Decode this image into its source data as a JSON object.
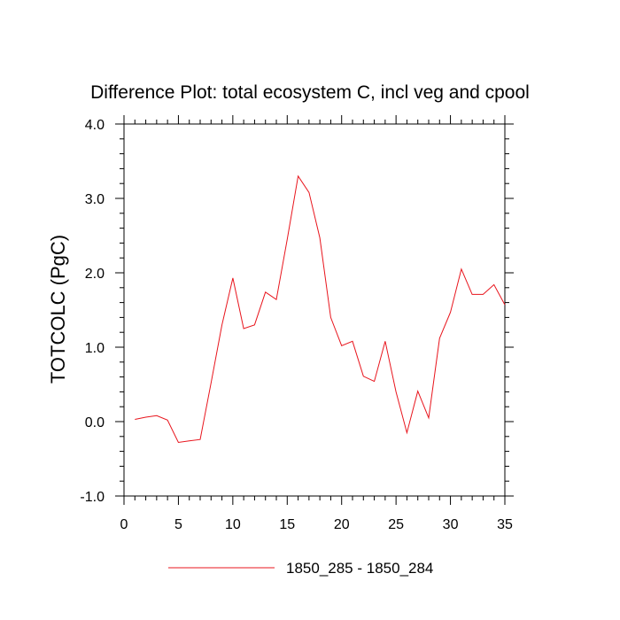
{
  "chart_data": {
    "type": "line",
    "title": "Difference Plot: total ecosystem C, incl veg and cpool",
    "xlabel": "",
    "ylabel": "TOTCOLC  (PgC)",
    "xlim": [
      0,
      35
    ],
    "ylim": [
      -1.0,
      4.0
    ],
    "xticks": [
      0,
      5,
      10,
      15,
      20,
      25,
      30,
      35
    ],
    "xtick_labels": [
      "0",
      "5",
      "10",
      "15",
      "20",
      "25",
      "30",
      "35"
    ],
    "yticks": [
      -1.0,
      0.0,
      1.0,
      2.0,
      3.0,
      4.0
    ],
    "ytick_labels": [
      "-1.0",
      "0.0",
      "1.0",
      "2.0",
      "3.0",
      "4.0"
    ],
    "grid": false,
    "legend_position": "bottom-center",
    "series": [
      {
        "name": "1850_285 - 1850_284",
        "color": "#e8141c",
        "x": [
          1,
          2,
          3,
          4,
          5,
          6,
          7,
          8,
          9,
          10,
          11,
          12,
          13,
          14,
          15,
          16,
          17,
          18,
          19,
          20,
          21,
          22,
          23,
          24,
          25,
          26,
          27,
          28,
          29,
          30,
          31,
          32,
          33,
          34,
          35
        ],
        "values": [
          0.03,
          0.06,
          0.08,
          0.02,
          -0.28,
          -0.26,
          -0.24,
          0.52,
          1.3,
          1.93,
          1.25,
          1.3,
          1.74,
          1.64,
          2.45,
          3.3,
          3.08,
          2.47,
          1.4,
          1.02,
          1.08,
          0.61,
          0.54,
          1.08,
          0.4,
          -0.15,
          0.41,
          0.05,
          1.12,
          1.47,
          2.05,
          1.71,
          1.71,
          1.84,
          1.57
        ]
      }
    ]
  }
}
